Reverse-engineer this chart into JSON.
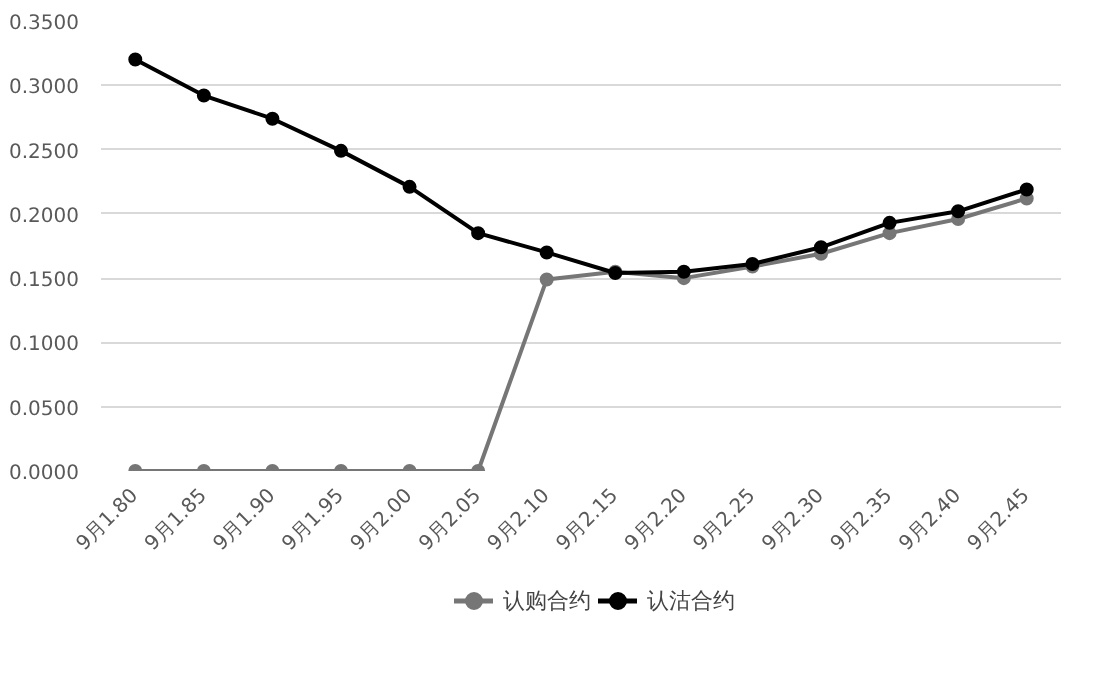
{
  "chart_data": {
    "type": "line",
    "categories": [
      "9月1.80",
      "9月1.85",
      "9月1.90",
      "9月1.95",
      "9月2.00",
      "9月2.05",
      "9月2.10",
      "9月2.15",
      "9月2.20",
      "9月2.25",
      "9月2.30",
      "9月2.35",
      "9月2.40",
      "9月2.45"
    ],
    "series": [
      {
        "name": "认购合约",
        "color": "#767676",
        "values": [
          0,
          0,
          0,
          0,
          0,
          0,
          0.149,
          0.155,
          0.15,
          0.159,
          0.169,
          0.185,
          0.196,
          0.212
        ]
      },
      {
        "name": "认沽合约",
        "color": "#000000",
        "values": [
          0.32,
          0.292,
          0.274,
          0.249,
          0.221,
          0.185,
          0.17,
          0.154,
          0.155,
          0.161,
          0.174,
          0.193,
          0.202,
          0.219
        ]
      }
    ],
    "ylim": [
      0,
      0.35
    ],
    "yticks": [
      {
        "value": 0,
        "label": "0.0000"
      },
      {
        "value": 0.05,
        "label": "0.0500"
      },
      {
        "value": 0.1,
        "label": "0.1000"
      },
      {
        "value": 0.15,
        "label": "0.1500"
      },
      {
        "value": 0.2,
        "label": "0.2000"
      },
      {
        "value": 0.25,
        "label": "0.2500"
      },
      {
        "value": 0.3,
        "label": "0.3000"
      },
      {
        "value": 0.35,
        "label": "0.3500"
      }
    ],
    "grid": "y",
    "legend": "bottom",
    "marker": "circle",
    "line_style": "solid"
  }
}
